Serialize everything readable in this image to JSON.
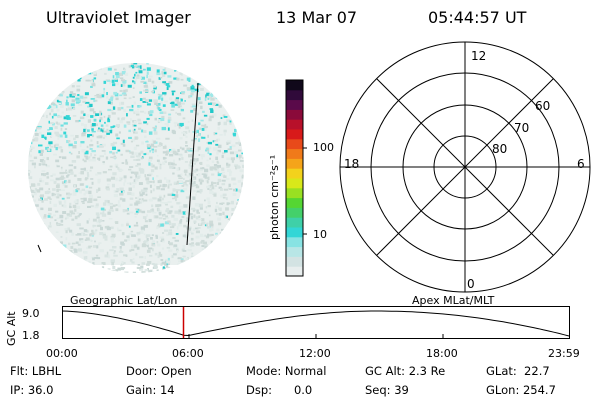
{
  "header": {
    "instrument": "Ultraviolet Imager",
    "date": "13 Mar 07",
    "time": "05:44:57 UT"
  },
  "colorbar": {
    "unit_label": "photon cm⁻²s⁻¹",
    "ticks": [
      "100",
      "10"
    ]
  },
  "polar_plot": {
    "mlt_labels": {
      "top": "12",
      "left": "18",
      "right": "6",
      "bottom": "0"
    },
    "lat_labels": [
      "60",
      "70",
      "80"
    ]
  },
  "timeline": {
    "left_title": "Geographic Lat/Lon",
    "right_title": "Apex MLat/MLT",
    "axis_label": "GC Alt",
    "y_ticks": [
      "9.0",
      "1.8"
    ],
    "x_ticks": [
      "00:00",
      "06:00",
      "12:00",
      "18:00",
      "23:59"
    ],
    "current_time_fraction": 0.2396
  },
  "footer": {
    "flt": "Flt: LBHL",
    "ip": "IP: 36.0",
    "door": "Door: Open",
    "gain": "Gain: 14",
    "mode": "Mode: Normal",
    "dsp": "Dsp:      0.0",
    "gc_alt": "GC Alt: 2.3 Re",
    "seq": "Seq: 39",
    "glat": "GLat:  22.7",
    "glon": "GLon: 254.7"
  },
  "colors": {
    "aurora_cyan": "#33d6d6",
    "image_gray": "#d8e4e2",
    "time_marker": "#cc0000"
  }
}
